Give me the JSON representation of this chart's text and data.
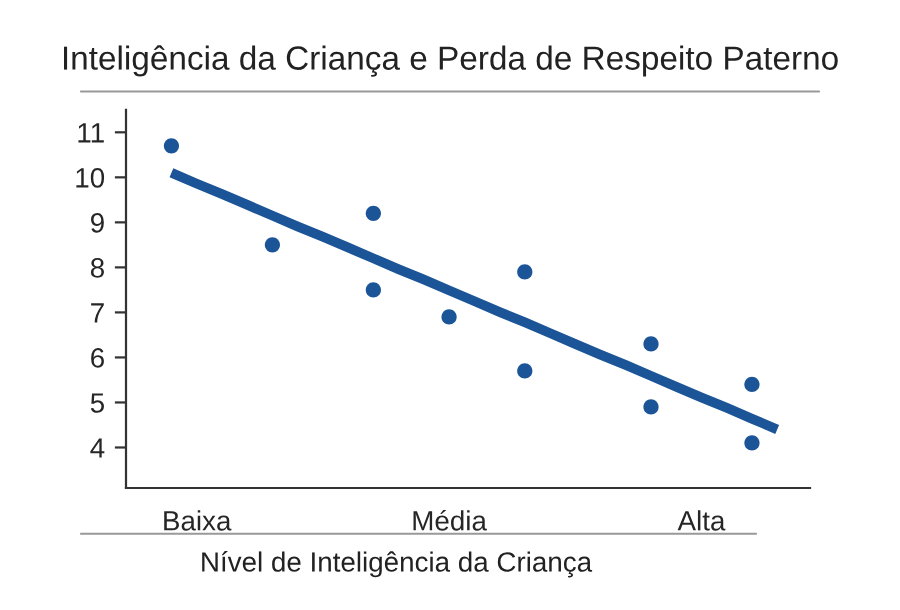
{
  "chart_data": {
    "type": "scatter",
    "title": "Inteligência da Criança e Perda de Respeito Paterno",
    "xlabel": "Nível de Inteligência da Criança",
    "categories": [
      null,
      "Baixa",
      null,
      null,
      null,
      null,
      null,
      null,
      null,
      null,
      null,
      "Média",
      null,
      null,
      null,
      null,
      null,
      null,
      null,
      null,
      null,
      "Alta",
      null,
      null,
      null
    ],
    "ylim": [
      3.1,
      11.5
    ],
    "yticks": [
      4,
      5,
      6,
      7,
      8,
      9,
      10,
      11
    ],
    "series": [
      {
        "marker": "circle",
        "color": "#1b5497",
        "values": [
          10.7,
          null,
          null,
          null,
          8.5,
          null,
          null,
          null,
          9.2,
          null,
          null,
          6.9,
          null,
          null,
          7.9,
          null,
          null,
          null,
          null,
          6.3,
          null,
          null,
          null,
          5.4,
          null
        ]
      },
      {
        "marker": "circle",
        "color": "#1b5497",
        "values": [
          null,
          null,
          null,
          null,
          null,
          null,
          null,
          null,
          7.5,
          null,
          null,
          null,
          null,
          null,
          5.7,
          null,
          null,
          null,
          null,
          4.9,
          null,
          null,
          null,
          4.1,
          null
        ]
      },
      {
        "type": "line",
        "color": "#1b5497",
        "values": [
          10.1,
          9.86,
          9.63,
          9.39,
          9.15,
          8.91,
          8.68,
          8.44,
          8.2,
          7.96,
          7.73,
          7.49,
          7.25,
          7.01,
          6.78,
          6.54,
          6.3,
          6.06,
          5.83,
          5.59,
          5.35,
          5.11,
          4.88,
          4.64,
          4.4
        ]
      }
    ],
    "grid": false,
    "legend": false
  }
}
